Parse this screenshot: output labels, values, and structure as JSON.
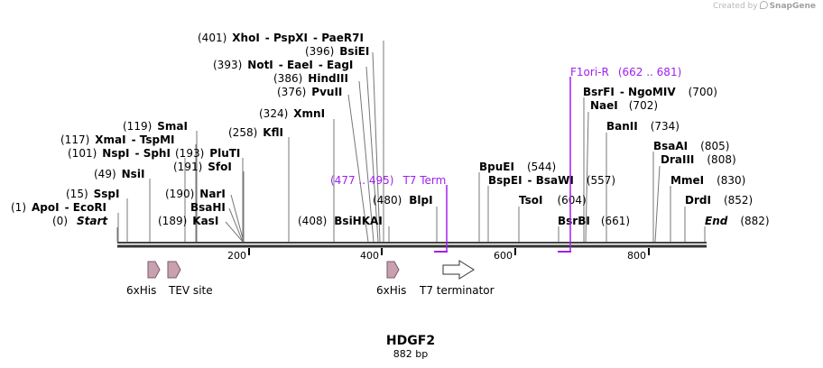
{
  "credit": {
    "prefix": "Created by",
    "brand": "SnapGene"
  },
  "map": {
    "name": "HDGF2",
    "length_label": "882 bp",
    "length": 882,
    "axis_ticks": [
      "200",
      "400",
      "600",
      "800"
    ],
    "colors": {
      "feature_fill": "#c9a0b0",
      "feature_stroke": "#7a5a68",
      "primer": "#a020f0",
      "text": "#000000"
    }
  },
  "sites": [
    {
      "pos": "(401)",
      "names": [
        "XhoI",
        "PspXI",
        "PaeR7I"
      ]
    },
    {
      "pos": "(396)",
      "names": [
        "BsiEI"
      ]
    },
    {
      "pos": "(393)",
      "names": [
        "NotI",
        "EaeI",
        "EagI"
      ]
    },
    {
      "pos": "(386)",
      "names": [
        "HindIII"
      ]
    },
    {
      "pos": "(376)",
      "names": [
        "PvuII"
      ]
    },
    {
      "pos": "(324)",
      "names": [
        "XmnI"
      ]
    },
    {
      "pos": "(258)",
      "names": [
        "KflI"
      ]
    },
    {
      "pos": "(119)",
      "names": [
        "SmaI"
      ]
    },
    {
      "pos": "(117)",
      "names": [
        "XmaI",
        "TspMI"
      ]
    },
    {
      "pos": "(101)",
      "names": [
        "NspI",
        "SphI"
      ]
    },
    {
      "pos": "(193)",
      "names": [
        "PluTI"
      ]
    },
    {
      "pos": "(191)",
      "names": [
        "SfoI"
      ]
    },
    {
      "pos": "(49)",
      "names": [
        "NsiI"
      ]
    },
    {
      "pos": "(190)",
      "names": [
        "NarI"
      ]
    },
    {
      "pos": "(15)",
      "names": [
        "SspI"
      ]
    },
    {
      "pos": "",
      "names": [
        "BsaHI"
      ]
    },
    {
      "pos": "(1)",
      "names": [
        "ApoI",
        "EcoRI"
      ]
    },
    {
      "pos": "(189)",
      "names": [
        "KasI"
      ]
    },
    {
      "pos": "(0)",
      "names": [
        "Start"
      ]
    },
    {
      "pos": "(408)",
      "names": [
        "BsiHKAI"
      ]
    },
    {
      "pos": "(480)",
      "names": [
        "BlpI"
      ]
    },
    {
      "pos": "(544)",
      "names": [
        "BpuEI"
      ]
    },
    {
      "pos": "(557)",
      "names": [
        "BspEI",
        "BsaWI"
      ]
    },
    {
      "pos": "(604)",
      "names": [
        "TsoI"
      ]
    },
    {
      "pos": "(661)",
      "names": [
        "BsrBI"
      ]
    },
    {
      "pos": "(700)",
      "names": [
        "BsrFI",
        "NgoMIV"
      ]
    },
    {
      "pos": "(702)",
      "names": [
        "NaeI"
      ]
    },
    {
      "pos": "(734)",
      "names": [
        "BanII"
      ]
    },
    {
      "pos": "(805)",
      "names": [
        "BsaAI"
      ]
    },
    {
      "pos": "(808)",
      "names": [
        "DraIII"
      ]
    },
    {
      "pos": "(830)",
      "names": [
        "MmeI"
      ]
    },
    {
      "pos": "(852)",
      "names": [
        "DrdI"
      ]
    },
    {
      "pos": "(882)",
      "names": [
        "End"
      ]
    }
  ],
  "primers": [
    {
      "name": "F1ori-R",
      "range": "(662 .. 681)"
    },
    {
      "name": "T7 Term",
      "range": "(477 .. 495)"
    }
  ],
  "features": [
    {
      "name": "6xHis"
    },
    {
      "name": "TEV site"
    },
    {
      "name": "6xHis"
    },
    {
      "name": "T7 terminator"
    }
  ]
}
